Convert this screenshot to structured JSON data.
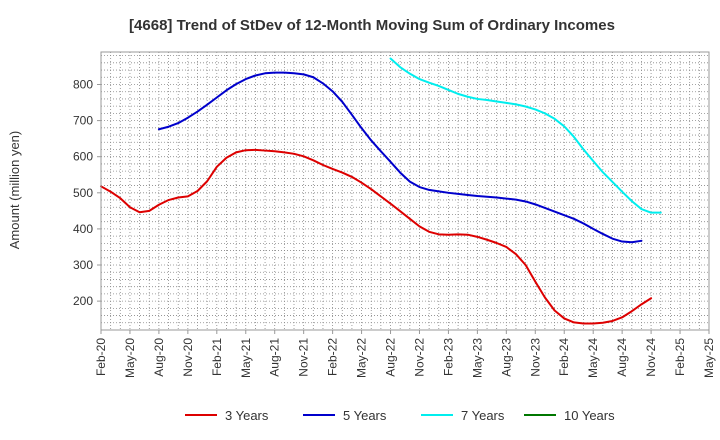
{
  "chart_data": {
    "type": "line",
    "title": "[4668]  Trend of StDev of 12-Month Moving Sum of Ordinary Incomes",
    "xlabel": "",
    "ylabel": "Amount (million yen)",
    "ylim": [
      120,
      890
    ],
    "yticks": [
      200,
      300,
      400,
      500,
      600,
      700,
      800
    ],
    "xtick_labels": [
      "Feb-20",
      "May-20",
      "Aug-20",
      "Nov-20",
      "Feb-21",
      "May-21",
      "Aug-21",
      "Nov-21",
      "Feb-22",
      "May-22",
      "Aug-22",
      "Nov-22",
      "Feb-23",
      "May-23",
      "Aug-23",
      "Nov-23",
      "Feb-24",
      "May-24",
      "Aug-24",
      "Nov-24",
      "Feb-25",
      "May-25"
    ],
    "grid": true,
    "legend_position": "bottom",
    "series": [
      {
        "name": "3 Years",
        "color": "#dd0000",
        "start_month_index": 0,
        "values": [
          518,
          503,
          485,
          460,
          446,
          450,
          467,
          480,
          487,
          490,
          505,
          532,
          572,
          597,
          612,
          618,
          619,
          617,
          615,
          612,
          608,
          601,
          590,
          577,
          566,
          556,
          544,
          528,
          510,
          490,
          470,
          449,
          428,
          407,
          392,
          385,
          384,
          385,
          384,
          378,
          370,
          361,
          350,
          330,
          300,
          254,
          210,
          174,
          152,
          141,
          138,
          138,
          140,
          145,
          155,
          172,
          191,
          208
        ]
      },
      {
        "name": "5 Years",
        "color": "#0000cc",
        "start_month_index": 6,
        "values": [
          676,
          683,
          693,
          708,
          725,
          744,
          764,
          784,
          801,
          815,
          825,
          831,
          833,
          833,
          831,
          828,
          820,
          803,
          781,
          752,
          716,
          679,
          645,
          615,
          586,
          556,
          531,
          516,
          508,
          504,
          500,
          497,
          494,
          491,
          489,
          487,
          484,
          481,
          476,
          468,
          458,
          448,
          438,
          428,
          415,
          400,
          386,
          373,
          365,
          363,
          367
        ]
      },
      {
        "name": "7 Years",
        "color": "#00eeee",
        "start_month_index": 30,
        "values": [
          872,
          848,
          830,
          815,
          805,
          796,
          785,
          774,
          766,
          760,
          757,
          753,
          749,
          745,
          739,
          731,
          720,
          705,
          684,
          655,
          620,
          588,
          557,
          530,
          503,
          477,
          455,
          445,
          445
        ]
      },
      {
        "name": "10 Years",
        "color": "#007700",
        "start_month_index": 0,
        "values": []
      }
    ]
  }
}
